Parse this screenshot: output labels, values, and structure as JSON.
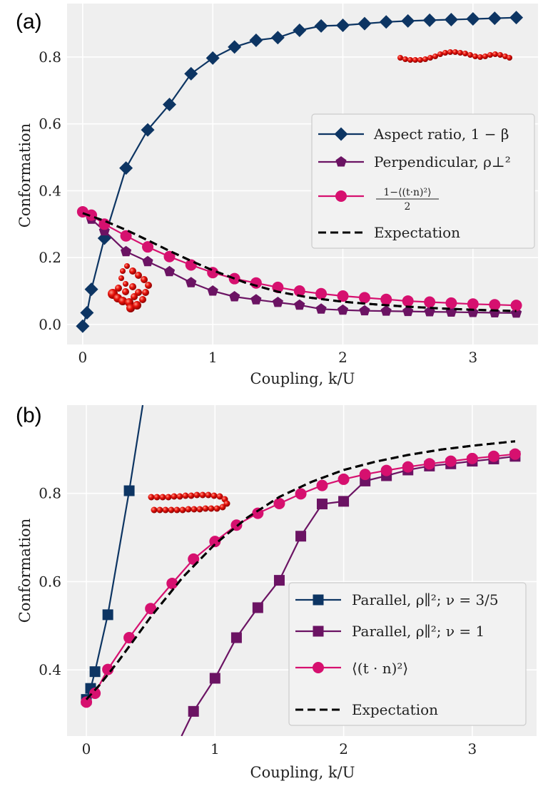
{
  "chart_data": [
    {
      "panel_label": "(a)",
      "type": "line",
      "xlabel": "Coupling, k/U",
      "ylabel": "Conformation",
      "xlim": [
        -0.12,
        3.5
      ],
      "ylim": [
        -0.06,
        0.96
      ],
      "xticks": [
        0,
        1,
        2,
        3
      ],
      "yticks": [
        0.0,
        0.2,
        0.4,
        0.6,
        0.8
      ],
      "xtick_labels": [
        "0",
        "1",
        "2",
        "3"
      ],
      "ytick_labels": [
        "0.0",
        "0.2",
        "0.4",
        "0.6",
        "0.8"
      ],
      "grid": true,
      "legend_position": "center-right",
      "series": [
        {
          "name": "Aspect ratio, 1 − β",
          "color": "#0d3563",
          "marker": "diamond",
          "x": [
            0,
            0.033,
            0.067,
            0.167,
            0.333,
            0.5,
            0.667,
            0.833,
            1.0,
            1.167,
            1.333,
            1.5,
            1.667,
            1.833,
            2.0,
            2.167,
            2.333,
            2.5,
            2.667,
            2.833,
            3.0,
            3.167,
            3.333
          ],
          "y": [
            -0.005,
            0.035,
            0.105,
            0.258,
            0.468,
            0.582,
            0.658,
            0.75,
            0.797,
            0.83,
            0.85,
            0.858,
            0.88,
            0.893,
            0.895,
            0.9,
            0.905,
            0.908,
            0.91,
            0.912,
            0.914,
            0.916,
            0.918
          ]
        },
        {
          "name": "Perpendicular, ρ⊥²",
          "color": "#6b1363",
          "marker": "pentagon",
          "x": [
            0,
            0.067,
            0.167,
            0.333,
            0.5,
            0.667,
            0.833,
            1.0,
            1.167,
            1.333,
            1.5,
            1.667,
            1.833,
            2.0,
            2.167,
            2.333,
            2.5,
            2.667,
            2.833,
            3.0,
            3.167,
            3.333
          ],
          "y": [
            0.337,
            0.315,
            0.28,
            0.218,
            0.188,
            0.158,
            0.125,
            0.1,
            0.083,
            0.074,
            0.066,
            0.058,
            0.046,
            0.043,
            0.041,
            0.04,
            0.039,
            0.038,
            0.037,
            0.036,
            0.035,
            0.034
          ]
        },
        {
          "name": "(1 − ⟨(t·n)²⟩)/2",
          "color": "#d6106f",
          "marker": "circle",
          "x": [
            0,
            0.067,
            0.167,
            0.333,
            0.5,
            0.667,
            0.833,
            1.0,
            1.167,
            1.333,
            1.5,
            1.667,
            1.833,
            2.0,
            2.167,
            2.333,
            2.5,
            2.667,
            2.833,
            3.0,
            3.167,
            3.333
          ],
          "y": [
            0.337,
            0.327,
            0.3,
            0.265,
            0.232,
            0.203,
            0.178,
            0.155,
            0.137,
            0.124,
            0.111,
            0.1,
            0.092,
            0.085,
            0.08,
            0.075,
            0.07,
            0.067,
            0.064,
            0.061,
            0.059,
            0.057
          ]
        },
        {
          "name": "Expectation",
          "color": "#000000",
          "marker": "none",
          "linestyle": "dashed",
          "x": [
            0,
            0.167,
            0.333,
            0.5,
            0.667,
            0.833,
            1.0,
            1.25,
            1.5,
            1.75,
            2.0,
            2.25,
            2.5,
            2.75,
            3.0,
            3.333
          ],
          "y": [
            0.333,
            0.31,
            0.283,
            0.252,
            0.22,
            0.19,
            0.162,
            0.125,
            0.098,
            0.08,
            0.068,
            0.06,
            0.053,
            0.048,
            0.044,
            0.04
          ]
        }
      ],
      "legend_math": {
        "numerator": "1−⟨(t·n)²⟩",
        "denominator": "2"
      }
    },
    {
      "panel_label": "(b)",
      "type": "line",
      "xlabel": "Coupling, k/U",
      "ylabel": "Conformation",
      "xlim": [
        -0.15,
        3.5
      ],
      "ylim": [
        0.25,
        1.0
      ],
      "xticks": [
        0,
        1,
        2,
        3
      ],
      "yticks": [
        0.4,
        0.6,
        0.8
      ],
      "xtick_labels": [
        "0",
        "1",
        "2",
        "3"
      ],
      "ytick_labels": [
        "0.4",
        "0.6",
        "0.8"
      ],
      "grid": true,
      "legend_position": "bottom-right",
      "series": [
        {
          "name": "Parallel, ρ∥²; ν = 3/5",
          "color": "#0d3563",
          "marker": "square",
          "x": [
            0,
            0.033,
            0.067,
            0.167,
            0.333
          ],
          "y": [
            0.333,
            0.358,
            0.396,
            0.525,
            0.806
          ],
          "line_extends_to": [
            0.438,
            1.0
          ]
        },
        {
          "name": "Parallel, ρ∥²; ν = 1",
          "color": "#6b1363",
          "marker": "square",
          "x": [
            0.833,
            1.0,
            1.167,
            1.333,
            1.5,
            1.667,
            1.833,
            2.0,
            2.167,
            2.333,
            2.5,
            2.667,
            2.833,
            3.0,
            3.167,
            3.333
          ],
          "y": [
            0.306,
            0.381,
            0.473,
            0.541,
            0.603,
            0.703,
            0.776,
            0.782,
            0.828,
            0.84,
            0.853,
            0.862,
            0.867,
            0.873,
            0.878,
            0.884
          ],
          "line_extends_to": [
            0.74,
            0.25
          ]
        },
        {
          "name": "⟨(t · n)²⟩",
          "color": "#d6106f",
          "marker": "circle",
          "x": [
            0,
            0.067,
            0.167,
            0.333,
            0.5,
            0.667,
            0.833,
            1.0,
            1.167,
            1.333,
            1.5,
            1.667,
            1.833,
            2.0,
            2.167,
            2.333,
            2.5,
            2.667,
            2.833,
            3.0,
            3.167,
            3.333
          ],
          "y": [
            0.327,
            0.347,
            0.401,
            0.473,
            0.539,
            0.596,
            0.651,
            0.691,
            0.728,
            0.755,
            0.777,
            0.799,
            0.818,
            0.832,
            0.843,
            0.852,
            0.86,
            0.867,
            0.873,
            0.879,
            0.884,
            0.889
          ]
        },
        {
          "name": "Expectation",
          "color": "#000000",
          "marker": "none",
          "linestyle": "dashed",
          "x": [
            0,
            0.1,
            0.25,
            0.5,
            0.75,
            1.0,
            1.25,
            1.5,
            1.75,
            2.0,
            2.25,
            2.5,
            2.75,
            3.0,
            3.333
          ],
          "y": [
            0.333,
            0.365,
            0.42,
            0.52,
            0.61,
            0.685,
            0.745,
            0.792,
            0.826,
            0.853,
            0.872,
            0.887,
            0.899,
            0.908,
            0.918
          ]
        }
      ]
    }
  ]
}
